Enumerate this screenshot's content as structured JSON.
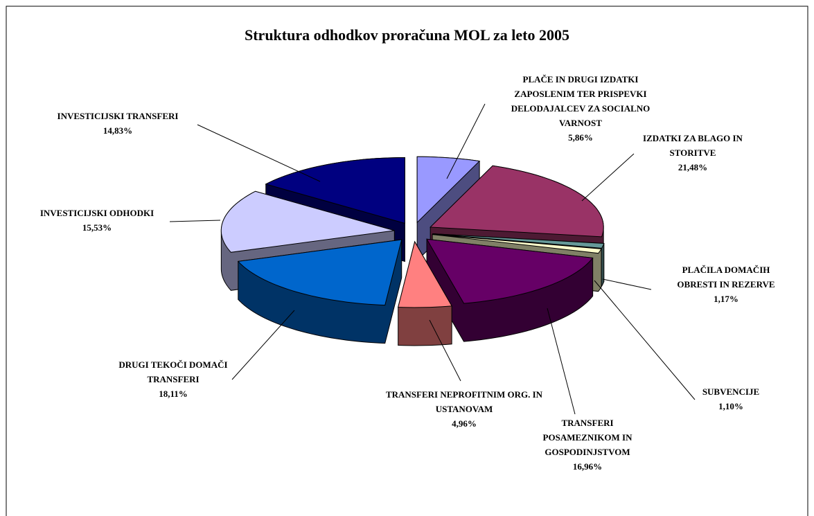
{
  "chart_data": {
    "type": "pie",
    "title": "Struktura odhodkov proračuna MOL za leto 2005",
    "categories": [
      "PLAČE IN DRUGI IZDATKI ZAPOSLENIM TER PRISPEVKI DELODAJALCEV ZA SOCIALNO VARNOST",
      "IZDATKI ZA BLAGO IN STORITVE",
      "PLAČILA DOMAČIH OBRESTI IN REZERVE",
      "SUBVENCIJE",
      "TRANSFERI POSAMEZNIKOM IN GOSPODINJSTVOM",
      "TRANSFERI NEPROFITNIM ORG. IN USTANOVAM",
      "DRUGI TEKOČI DOMAČI TRANSFERI",
      "INVESTICIJSKI ODHODKI",
      "INVESTICIJSKI TRANSFERI"
    ],
    "values": [
      5.86,
      21.48,
      1.17,
      1.1,
      16.96,
      4.96,
      18.11,
      15.53,
      14.83
    ],
    "value_labels": [
      "5,86%",
      "21,48%",
      "1,17%",
      "1,10%",
      "16,96%",
      "4,96%",
      "18,11%",
      "15,53%",
      "14,83%"
    ],
    "colors": [
      "#9999ff",
      "#993366",
      "#669999",
      "#ffffcc",
      "#660066",
      "#ff8080",
      "#0066cc",
      "#ccccff",
      "#000080"
    ]
  }
}
